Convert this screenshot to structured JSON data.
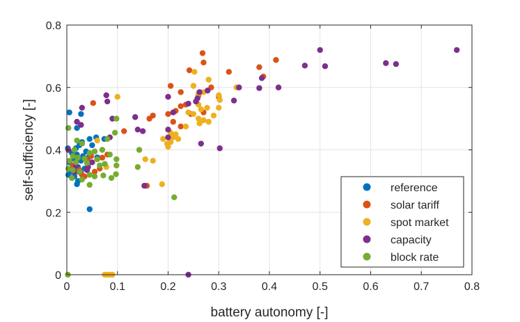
{
  "chart_data": {
    "type": "scatter",
    "xlabel": "battery autonomy [-]",
    "ylabel": "self-sufficiency [-]",
    "xlim": [
      0,
      0.8
    ],
    "ylim": [
      0,
      0.8
    ],
    "xticks": [
      0,
      0.1,
      0.2,
      0.3,
      0.4,
      0.5,
      0.6,
      0.7,
      0.8
    ],
    "yticks": [
      0,
      0.2,
      0.4,
      0.6,
      0.8
    ],
    "xtick_labels": [
      "0",
      "0.1",
      "0.2",
      "0.3",
      "0.4",
      "0.5",
      "0.6",
      "0.7",
      "0.8"
    ],
    "ytick_labels": [
      "0",
      "0.2",
      "0.4",
      "0.6",
      "0.8"
    ],
    "grid": true,
    "legend_position": "bottom-right",
    "series": [
      {
        "name": "reference",
        "color": "#0072BD",
        "points": [
          [
            0.005,
            0.52
          ],
          [
            0.028,
            0.515
          ],
          [
            0.02,
            0.47
          ],
          [
            0.045,
            0.435
          ],
          [
            0.058,
            0.44
          ],
          [
            0.074,
            0.435
          ],
          [
            0.03,
            0.425
          ],
          [
            0.025,
            0.415
          ],
          [
            0.05,
            0.415
          ],
          [
            0.002,
            0.405
          ],
          [
            0.018,
            0.405
          ],
          [
            0.038,
            0.395
          ],
          [
            0.01,
            0.39
          ],
          [
            0.02,
            0.385
          ],
          [
            0.032,
            0.38
          ],
          [
            0.044,
            0.378
          ],
          [
            0.06,
            0.376
          ],
          [
            0.015,
            0.37
          ],
          [
            0.028,
            0.365
          ],
          [
            0.005,
            0.36
          ],
          [
            0.04,
            0.358
          ],
          [
            0.012,
            0.35
          ],
          [
            0.022,
            0.345
          ],
          [
            0.035,
            0.34
          ],
          [
            0.018,
            0.335
          ],
          [
            0.008,
            0.33
          ],
          [
            0.028,
            0.325
          ],
          [
            0.003,
            0.32
          ],
          [
            0.015,
            0.315
          ],
          [
            0.01,
            0.31
          ],
          [
            0.022,
            0.3
          ],
          [
            0.02,
            0.29
          ],
          [
            0.045,
            0.21
          ]
        ]
      },
      {
        "name": "solar tariff",
        "color": "#D95319",
        "points": [
          [
            0.268,
            0.71
          ],
          [
            0.27,
            0.68
          ],
          [
            0.242,
            0.655
          ],
          [
            0.32,
            0.65
          ],
          [
            0.38,
            0.665
          ],
          [
            0.413,
            0.688
          ],
          [
            0.388,
            0.635
          ],
          [
            0.285,
            0.6
          ],
          [
            0.205,
            0.605
          ],
          [
            0.225,
            0.585
          ],
          [
            0.26,
            0.575
          ],
          [
            0.3,
            0.57
          ],
          [
            0.255,
            0.555
          ],
          [
            0.235,
            0.545
          ],
          [
            0.225,
            0.54
          ],
          [
            0.215,
            0.525
          ],
          [
            0.27,
            0.52
          ],
          [
            0.245,
            0.515
          ],
          [
            0.2,
            0.515
          ],
          [
            0.17,
            0.51
          ],
          [
            0.163,
            0.5
          ],
          [
            0.21,
            0.49
          ],
          [
            0.225,
            0.475
          ],
          [
            0.113,
            0.46
          ],
          [
            0.052,
            0.55
          ],
          [
            0.048,
            0.38
          ],
          [
            0.06,
            0.37
          ],
          [
            0.07,
            0.375
          ],
          [
            0.08,
            0.385
          ],
          [
            0.045,
            0.36
          ],
          [
            0.038,
            0.37
          ],
          [
            0.012,
            0.35
          ],
          [
            0.02,
            0.33
          ],
          [
            0.025,
            0.335
          ],
          [
            0.03,
            0.32
          ],
          [
            0.035,
            0.315
          ],
          [
            0.158,
            0.285
          ],
          [
            0.065,
            0.34
          ],
          [
            0.055,
            0.33
          ]
        ]
      },
      {
        "name": "spot market",
        "color": "#EDB120",
        "points": [
          [
            0.252,
            0.65
          ],
          [
            0.28,
            0.625
          ],
          [
            0.25,
            0.605
          ],
          [
            0.27,
            0.585
          ],
          [
            0.3,
            0.575
          ],
          [
            0.302,
            0.56
          ],
          [
            0.3,
            0.535
          ],
          [
            0.26,
            0.545
          ],
          [
            0.265,
            0.53
          ],
          [
            0.277,
            0.535
          ],
          [
            0.25,
            0.515
          ],
          [
            0.24,
            0.52
          ],
          [
            0.26,
            0.5
          ],
          [
            0.27,
            0.495
          ],
          [
            0.28,
            0.49
          ],
          [
            0.262,
            0.485
          ],
          [
            0.235,
            0.475
          ],
          [
            0.205,
            0.455
          ],
          [
            0.215,
            0.45
          ],
          [
            0.21,
            0.44
          ],
          [
            0.22,
            0.435
          ],
          [
            0.205,
            0.425
          ],
          [
            0.198,
            0.42
          ],
          [
            0.2,
            0.41
          ],
          [
            0.335,
            0.6
          ],
          [
            0.1,
            0.57
          ],
          [
            0.06,
            0.43
          ],
          [
            0.155,
            0.37
          ],
          [
            0.17,
            0.365
          ],
          [
            0.078,
            0.345
          ],
          [
            0.188,
            0.29
          ],
          [
            0.075,
            0.0
          ],
          [
            0.08,
            0.0
          ],
          [
            0.085,
            0.0
          ],
          [
            0.09,
            0.0
          ],
          [
            0.26,
            0.58
          ],
          [
            0.19,
            0.435
          ],
          [
            0.29,
            0.51
          ]
        ]
      },
      {
        "name": "capacity",
        "color": "#7E2F8E",
        "points": [
          [
            0.77,
            0.72
          ],
          [
            0.5,
            0.72
          ],
          [
            0.63,
            0.678
          ],
          [
            0.65,
            0.675
          ],
          [
            0.47,
            0.67
          ],
          [
            0.51,
            0.668
          ],
          [
            0.385,
            0.63
          ],
          [
            0.34,
            0.6
          ],
          [
            0.38,
            0.598
          ],
          [
            0.418,
            0.6
          ],
          [
            0.278,
            0.59
          ],
          [
            0.262,
            0.585
          ],
          [
            0.258,
            0.565
          ],
          [
            0.2,
            0.57
          ],
          [
            0.078,
            0.575
          ],
          [
            0.08,
            0.555
          ],
          [
            0.255,
            0.555
          ],
          [
            0.24,
            0.548
          ],
          [
            0.21,
            0.52
          ],
          [
            0.135,
            0.505
          ],
          [
            0.09,
            0.5
          ],
          [
            0.02,
            0.49
          ],
          [
            0.028,
            0.48
          ],
          [
            0.03,
            0.535
          ],
          [
            0.14,
            0.465
          ],
          [
            0.15,
            0.46
          ],
          [
            0.2,
            0.465
          ],
          [
            0.2,
            0.44
          ],
          [
            0.265,
            0.42
          ],
          [
            0.302,
            0.405
          ],
          [
            0.085,
            0.44
          ],
          [
            0.003,
            0.4
          ],
          [
            0.04,
            0.335
          ],
          [
            0.042,
            0.345
          ],
          [
            0.015,
            0.33
          ],
          [
            0.153,
            0.285
          ],
          [
            0.24,
            0.0
          ],
          [
            0.33,
            0.558
          ],
          [
            0.018,
            0.35
          ],
          [
            0.05,
            0.36
          ]
        ]
      },
      {
        "name": "block rate",
        "color": "#77AC30",
        "points": [
          [
            0.003,
            0.47
          ],
          [
            0.098,
            0.5
          ],
          [
            0.095,
            0.455
          ],
          [
            0.08,
            0.435
          ],
          [
            0.02,
            0.43
          ],
          [
            0.03,
            0.42
          ],
          [
            0.143,
            0.4
          ],
          [
            0.015,
            0.4
          ],
          [
            0.07,
            0.4
          ],
          [
            0.055,
            0.395
          ],
          [
            0.045,
            0.39
          ],
          [
            0.085,
            0.385
          ],
          [
            0.012,
            0.38
          ],
          [
            0.022,
            0.375
          ],
          [
            0.035,
            0.372
          ],
          [
            0.06,
            0.37
          ],
          [
            0.098,
            0.37
          ],
          [
            0.005,
            0.365
          ],
          [
            0.018,
            0.36
          ],
          [
            0.04,
            0.358
          ],
          [
            0.075,
            0.355
          ],
          [
            0.098,
            0.35
          ],
          [
            0.14,
            0.345
          ],
          [
            0.003,
            0.34
          ],
          [
            0.012,
            0.335
          ],
          [
            0.025,
            0.33
          ],
          [
            0.045,
            0.32
          ],
          [
            0.055,
            0.315
          ],
          [
            0.072,
            0.318
          ],
          [
            0.088,
            0.31
          ],
          [
            0.097,
            0.322
          ],
          [
            0.01,
            0.31
          ],
          [
            0.03,
            0.305
          ],
          [
            0.045,
            0.288
          ],
          [
            0.212,
            0.248
          ],
          [
            0.002,
            0.0
          ],
          [
            0.065,
            0.35
          ]
        ]
      }
    ]
  }
}
